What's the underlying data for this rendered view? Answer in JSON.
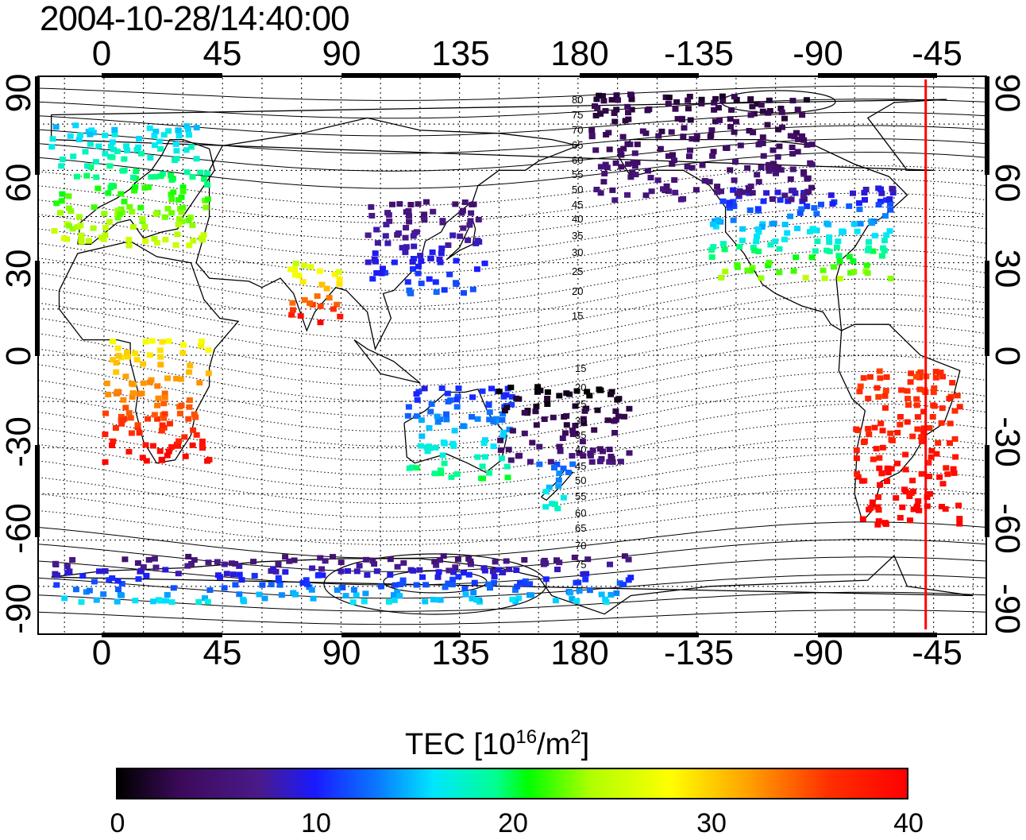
{
  "header": {
    "timestamp": "2004-10-28/14:40:00"
  },
  "axes": {
    "longitude_labels": [
      "0",
      "45",
      "90",
      "135",
      "180",
      "-135",
      "-90",
      "-45"
    ],
    "latitude_labels_left": [
      "90",
      "60",
      "30",
      "0",
      "-30",
      "-60",
      "-90"
    ],
    "latitude_labels_right": [
      "90",
      "60",
      "30",
      "0",
      "-30",
      "-60",
      "-90"
    ],
    "lon_range": [
      -25,
      335
    ],
    "lat_range": [
      -90,
      90
    ],
    "grid": true
  },
  "contour_labels": {
    "north": [
      "80",
      "75",
      "70",
      "65",
      "60",
      "55",
      "50",
      "45",
      "40",
      "35",
      "30",
      "25",
      "20",
      "15"
    ],
    "south": [
      "15",
      "20",
      "25",
      "30",
      "35",
      "40",
      "45",
      "50",
      "55",
      "60",
      "65",
      "70",
      "75"
    ]
  },
  "colorbar": {
    "title_main": "TEC  [10",
    "title_exp1": "16",
    "title_mid": "/m",
    "title_exp2": "2",
    "title_end": "]",
    "ticks": [
      "0",
      "10",
      "20",
      "30",
      "40"
    ],
    "min": 0,
    "max": 40
  },
  "colors": {
    "marker_line": "#ff0000"
  },
  "marker_line_lon": -48,
  "map_data": {
    "regions": [
      {
        "name": "europe",
        "lon": [
          -20,
          40
        ],
        "lat": [
          35,
          75
        ],
        "tec": [
          15,
          26
        ]
      },
      {
        "name": "north-america",
        "lon": [
          -130,
          -60
        ],
        "lat": [
          25,
          55
        ],
        "tec": [
          8,
          24
        ]
      },
      {
        "name": "canada-arctic",
        "lon": [
          -175,
          -90
        ],
        "lat": [
          50,
          85
        ],
        "tec": [
          2,
          6
        ]
      },
      {
        "name": "south-america",
        "lon": [
          -75,
          -35
        ],
        "lat": [
          -55,
          -5
        ],
        "tec": [
          36,
          40
        ]
      },
      {
        "name": "east-asia",
        "lon": [
          100,
          145
        ],
        "lat": [
          20,
          50
        ],
        "tec": [
          5,
          12
        ]
      },
      {
        "name": "australia",
        "lon": [
          115,
          155
        ],
        "lat": [
          -40,
          -10
        ],
        "tec": [
          10,
          20
        ]
      },
      {
        "name": "new-zealand",
        "lon": [
          165,
          180
        ],
        "lat": [
          -50,
          -35
        ],
        "tec": [
          12,
          18
        ]
      },
      {
        "name": "africa",
        "lon": [
          0,
          40
        ],
        "lat": [
          -35,
          5
        ],
        "tec": [
          28,
          40
        ]
      },
      {
        "name": "india",
        "lon": [
          70,
          90
        ],
        "lat": [
          10,
          30
        ],
        "tec": [
          25,
          40
        ]
      },
      {
        "name": "antarctica",
        "lon": [
          -20,
          200
        ],
        "lat": [
          -80,
          -65
        ],
        "tec": [
          5,
          16
        ]
      },
      {
        "name": "pacific-south",
        "lon": [
          150,
          200
        ],
        "lat": [
          -35,
          -10
        ],
        "tec": [
          0,
          6
        ]
      }
    ]
  }
}
